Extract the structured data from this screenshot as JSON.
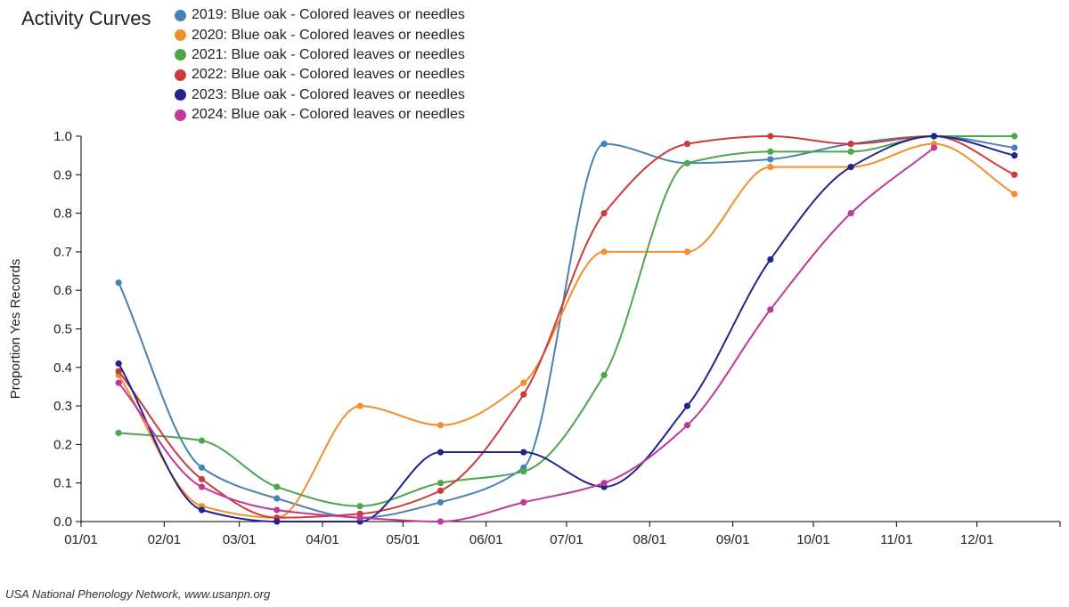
{
  "chart_data": {
    "type": "line",
    "title": "Activity Curves",
    "ylabel": "Proportion Yes Records",
    "xlabel": "",
    "ylim": [
      0,
      1
    ],
    "yticks": [
      "0.0",
      "0.1",
      "0.2",
      "0.3",
      "0.4",
      "0.5",
      "0.6",
      "0.7",
      "0.8",
      "0.9",
      "1.0"
    ],
    "xticks": [
      "01/01",
      "02/01",
      "03/01",
      "04/01",
      "05/01",
      "06/01",
      "07/01",
      "08/01",
      "09/01",
      "10/01",
      "11/01",
      "12/01"
    ],
    "x_points": [
      "01/15",
      "02/15",
      "03/15",
      "04/15",
      "05/15",
      "06/15",
      "07/15",
      "08/15",
      "09/15",
      "10/15",
      "11/15",
      "12/15"
    ],
    "legend_position": "top",
    "grid": false,
    "series": [
      {
        "name": "2019: Blue oak - Colored leaves or needles",
        "color": "#4682b4",
        "values": [
          0.62,
          0.14,
          0.06,
          0.01,
          0.05,
          0.14,
          0.98,
          0.93,
          0.94,
          0.98,
          1.0,
          0.97
        ]
      },
      {
        "name": "2020: Blue oak - Colored leaves or needles",
        "color": "#f28e2b",
        "values": [
          0.38,
          0.04,
          0.01,
          0.3,
          0.25,
          0.36,
          0.7,
          0.7,
          0.92,
          0.92,
          0.98,
          0.85
        ]
      },
      {
        "name": "2021: Blue oak - Colored leaves or needles",
        "color": "#4ca64c",
        "values": [
          0.23,
          0.21,
          0.09,
          0.04,
          0.1,
          0.13,
          0.38,
          0.93,
          0.96,
          0.96,
          1.0,
          1.0
        ]
      },
      {
        "name": "2022: Blue oak - Colored leaves or needles",
        "color": "#cc3a3a",
        "values": [
          0.39,
          0.11,
          0.01,
          0.02,
          0.08,
          0.33,
          0.8,
          0.98,
          1.0,
          0.98,
          1.0,
          0.9
        ]
      },
      {
        "name": "2023: Blue oak - Colored leaves or needles",
        "color": "#23238e",
        "values": [
          0.41,
          0.03,
          0.0,
          0.0,
          0.18,
          0.18,
          0.09,
          0.3,
          0.68,
          0.92,
          1.0,
          0.95
        ]
      },
      {
        "name": "2024: Blue oak - Colored leaves or needles",
        "color": "#c1379a",
        "values": [
          0.36,
          0.09,
          0.03,
          0.01,
          0.0,
          0.05,
          0.1,
          0.25,
          0.55,
          0.8,
          0.97,
          null
        ]
      }
    ]
  },
  "credit": "USA National Phenology Network, www.usanpn.org"
}
